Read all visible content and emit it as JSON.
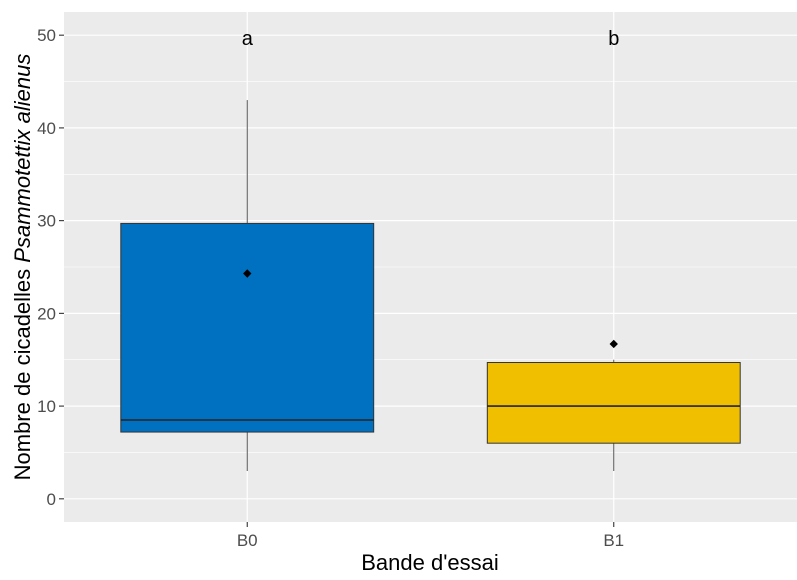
{
  "chart_data": {
    "type": "box",
    "title": "",
    "xlabel": "Bande d'essai",
    "ylabel": {
      "prefix": "Nombre de cicadelles ",
      "italic": "Psammotettix alienus"
    },
    "ylim": [
      -2.5,
      52.5
    ],
    "yticks": [
      0,
      10,
      20,
      30,
      40,
      50
    ],
    "grid": true,
    "background": "#EBEBEB",
    "categories": [
      "B0",
      "B1"
    ],
    "boxes": [
      {
        "category": "B0",
        "color": "#0070C0",
        "whisker_low": 3,
        "q1": 7.2,
        "median": 8.5,
        "q3": 29.7,
        "whisker_high": 43,
        "mean": 24.3,
        "group_letter": "a"
      },
      {
        "category": "B1",
        "color": "#F0C000",
        "whisker_low": 3,
        "q1": 6,
        "median": 10,
        "q3": 14.7,
        "whisker_high": 15,
        "mean": 16.7,
        "group_letter": "b"
      }
    ]
  }
}
